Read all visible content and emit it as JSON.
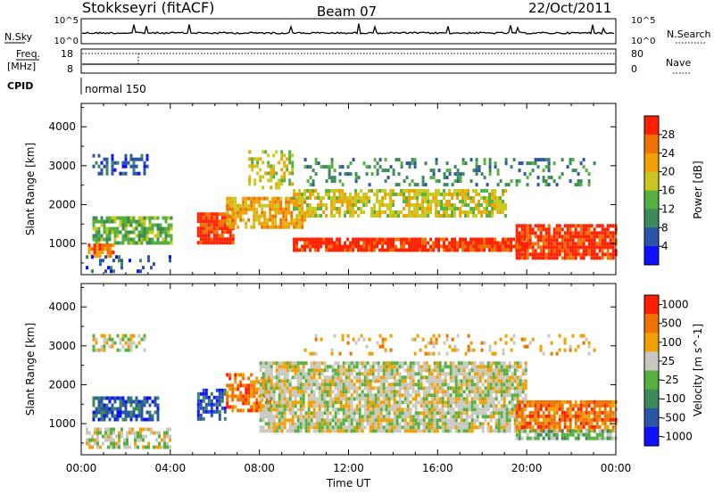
{
  "header": {
    "station": "Stokkseyri (fitACF)",
    "beam": "Beam 07",
    "date": "22/Oct/2011"
  },
  "strips": {
    "nsky_label": "N.Sky",
    "nsky_ticks": [
      "10^5",
      "10^0"
    ],
    "nsearch_label": "N.Search",
    "nsearch_ticks": [
      "10^5",
      "10^0"
    ],
    "freq_label_1": "Freq.",
    "freq_label_2": "[MHz]",
    "freq_ticks": [
      "18",
      "8"
    ],
    "nave_label": "Nave",
    "nave_ticks": [
      "80",
      "0"
    ],
    "cpid_label": "CPID",
    "cpid_value": "normal 150"
  },
  "colors": {
    "power_scale": [
      "#1010ff",
      "#2a55a8",
      "#3c8a5a",
      "#56b040",
      "#c8c820",
      "#f0a000",
      "#f07000",
      "#ff2000"
    ],
    "velocity_scale": [
      "#1010ff",
      "#2a55a8",
      "#3c8a5a",
      "#56b040",
      "#c8c8c0",
      "#f0a000",
      "#f07000",
      "#ff2000"
    ],
    "ground_scatter": "#c0c0b8"
  },
  "chart_data": [
    {
      "type": "heatmap",
      "title": "",
      "xlabel": "Time UT",
      "ylabel": "Slant Range [km]",
      "x_ticks": [
        "00:00",
        "04:00",
        "08:00",
        "12:00",
        "16:00",
        "20:00",
        "00:00"
      ],
      "x_range_hours": [
        0,
        24
      ],
      "y_ticks": [
        "1000",
        "2000",
        "3000",
        "4000"
      ],
      "ylim": [
        200,
        4600
      ],
      "colorbar": {
        "label": "Power [dB]",
        "ticks": [
          "4",
          "8",
          "12",
          "16",
          "20",
          "24",
          "28"
        ],
        "range": [
          0,
          32
        ]
      },
      "regions": [
        {
          "t": [
            0.5,
            3.0
          ],
          "r": [
            2800,
            3300
          ],
          "color_index": 1,
          "density": 0.45
        },
        {
          "t": [
            0.5,
            4.0
          ],
          "r": [
            1050,
            1700
          ],
          "color_index": 3,
          "density": 0.75
        },
        {
          "t": [
            0.3,
            1.5
          ],
          "r": [
            650,
            1000
          ],
          "color_index": 6,
          "density": 0.8
        },
        {
          "t": [
            0.2,
            4.0
          ],
          "r": [
            300,
            700
          ],
          "color_index": 1,
          "density": 0.25
        },
        {
          "t": [
            5.2,
            6.8
          ],
          "r": [
            1000,
            1800
          ],
          "color_index": 7,
          "density": 0.9
        },
        {
          "t": [
            6.5,
            10.0
          ],
          "r": [
            1400,
            2200
          ],
          "color_index": 5,
          "density": 0.75
        },
        {
          "t": [
            9.5,
            19.0
          ],
          "r": [
            1700,
            2400
          ],
          "color_index": 4,
          "density": 0.7
        },
        {
          "t": [
            9.5,
            20.0
          ],
          "r": [
            800,
            1150
          ],
          "color_index": 7,
          "density": 0.9
        },
        {
          "t": [
            19.5,
            24.0
          ],
          "r": [
            650,
            1500
          ],
          "color_index": 7,
          "density": 0.85
        },
        {
          "t": [
            10.0,
            23.0
          ],
          "r": [
            2500,
            3200
          ],
          "color_index": 2,
          "density": 0.25
        },
        {
          "t": [
            7.5,
            9.5
          ],
          "r": [
            2400,
            3400
          ],
          "color_index": 4,
          "density": 0.45
        }
      ]
    },
    {
      "type": "heatmap",
      "title": "",
      "xlabel": "Time UT",
      "ylabel": "Slant Range [km]",
      "x_ticks": [
        "00:00",
        "04:00",
        "08:00",
        "12:00",
        "16:00",
        "20:00",
        "00:00"
      ],
      "x_range_hours": [
        0,
        24
      ],
      "y_ticks": [
        "1000",
        "2000",
        "3000",
        "4000"
      ],
      "ylim": [
        200,
        4600
      ],
      "colorbar": {
        "label": "Velocity [m s^-1]",
        "ticks": [
          "1000",
          "500",
          "100",
          "25",
          "-25",
          "-100",
          "-500",
          "-1000"
        ],
        "range": [
          -1000,
          1000
        ]
      },
      "regions": [
        {
          "t": [
            0.5,
            3.0
          ],
          "r": [
            2900,
            3300
          ],
          "color_index": 4,
          "density": 0.5
        },
        {
          "t": [
            0.5,
            3.5
          ],
          "r": [
            1100,
            1700
          ],
          "color_index": 1,
          "density": 0.7
        },
        {
          "t": [
            0.2,
            4.0
          ],
          "r": [
            400,
            900
          ],
          "color_index": 4,
          "density": 0.6
        },
        {
          "t": [
            5.2,
            6.5
          ],
          "r": [
            1100,
            1900
          ],
          "color_index": 1,
          "density": 0.6
        },
        {
          "t": [
            6.5,
            8.5
          ],
          "r": [
            1300,
            2300
          ],
          "color_index": 6,
          "density": 0.6
        },
        {
          "t": [
            8.0,
            20.0
          ],
          "r": [
            800,
            2600
          ],
          "color_index": 4,
          "density": 0.85
        },
        {
          "t": [
            19.5,
            24.0
          ],
          "r": [
            800,
            1600
          ],
          "color_index": 6,
          "density": 0.8
        },
        {
          "t": [
            19.5,
            24.0
          ],
          "r": [
            600,
            850
          ],
          "color_index": 3,
          "density": 0.7
        },
        {
          "t": [
            10.0,
            23.0
          ],
          "r": [
            2800,
            3300
          ],
          "color_index": 5,
          "density": 0.2
        }
      ]
    }
  ]
}
